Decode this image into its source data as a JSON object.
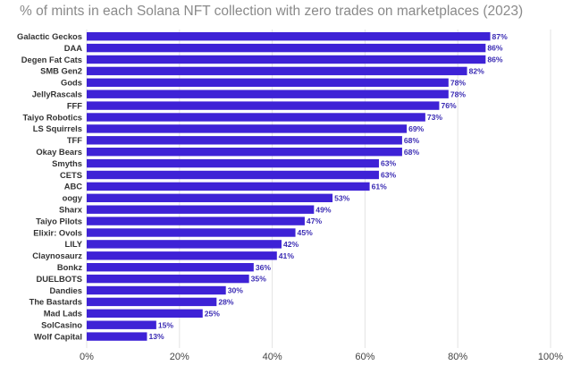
{
  "chart_data": {
    "type": "bar",
    "orientation": "horizontal",
    "title": "% of mints in each Solana NFT collection with zero trades on marketplaces (2023)",
    "xlabel": "",
    "ylabel": "",
    "xlim": [
      0,
      100
    ],
    "xticks": [
      "0%",
      "20%",
      "40%",
      "60%",
      "80%",
      "100%"
    ],
    "xtick_values": [
      0,
      20,
      40,
      60,
      80,
      100
    ],
    "grid": true,
    "legend": "none",
    "bar_color": "#3e22d6",
    "value_label_color": "#3a2bb3",
    "categories": [
      "Galactic Geckos",
      "DAA",
      "Degen Fat Cats",
      "SMB Gen2",
      "Gods",
      "JellyRascals",
      "FFF",
      "Taiyo Robotics",
      "LS Squirrels",
      "TFF",
      "Okay Bears",
      "Smyths",
      "CETS",
      "ABC",
      "oogy",
      "Sharx",
      "Taiyo Pilots",
      "Elixir: Ovols",
      "LILY",
      "Claynosaurz",
      "Bonkz",
      "DUELBOTS",
      "Dandies",
      "The Bastards",
      "Mad Lads",
      "SolCasino",
      "Wolf Capital"
    ],
    "values": [
      87,
      86,
      86,
      82,
      78,
      78,
      76,
      73,
      69,
      68,
      68,
      63,
      63,
      61,
      53,
      49,
      47,
      45,
      42,
      41,
      36,
      35,
      30,
      28,
      25,
      15,
      13
    ],
    "value_labels": [
      "87%",
      "86%",
      "86%",
      "82%",
      "78%",
      "78%",
      "76%",
      "73%",
      "69%",
      "68%",
      "68%",
      "63%",
      "63%",
      "61%",
      "53%",
      "49%",
      "47%",
      "45%",
      "42%",
      "41%",
      "36%",
      "35%",
      "30%",
      "28%",
      "25%",
      "15%",
      "13%"
    ]
  }
}
